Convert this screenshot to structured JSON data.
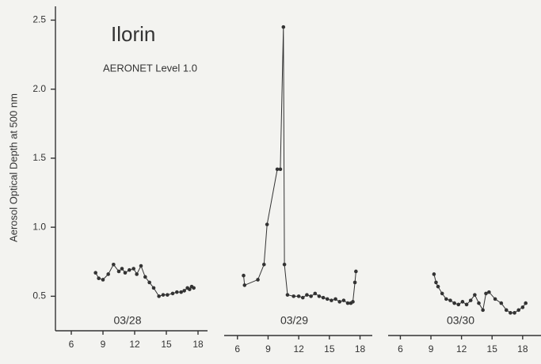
{
  "chart_data": {
    "type": "line",
    "title": "Ilorin",
    "subtitle": "AERONET Level 1.0",
    "y_label": "Aerosol Optical Depth at 500 nm",
    "color": "#333333",
    "ylim": [
      0.25,
      2.6
    ],
    "yticks": [
      0.5,
      {
        "value": 1,
        "label": "1.0"
      },
      1.5,
      {
        "value": 2,
        "label": "2.0"
      },
      2.5
    ],
    "panels": [
      {
        "label": "03/28",
        "xlim": [
          4.5,
          18.9
        ],
        "xticks": [
          6,
          9,
          12,
          15,
          18
        ],
        "x": [
          8.3,
          8.6,
          9.0,
          9.5,
          10.0,
          10.5,
          10.8,
          11.1,
          11.5,
          11.9,
          12.2,
          12.6,
          13.0,
          13.4,
          13.8,
          14.3,
          14.7,
          15.1,
          15.6,
          16.0,
          16.4,
          16.7,
          17.0,
          17.2,
          17.4,
          17.6
        ],
        "values": [
          0.67,
          0.63,
          0.62,
          0.66,
          0.73,
          0.68,
          0.7,
          0.67,
          0.69,
          0.7,
          0.66,
          0.72,
          0.64,
          0.6,
          0.56,
          0.5,
          0.51,
          0.51,
          0.52,
          0.53,
          0.53,
          0.54,
          0.56,
          0.55,
          0.57,
          0.56
        ]
      },
      {
        "label": "03/29",
        "xlim": [
          4.7,
          19.2
        ],
        "xticks": [
          6,
          9,
          12,
          15,
          18
        ],
        "x": [
          6.6,
          6.7,
          8.0,
          8.6,
          8.9,
          9.9,
          10.2,
          10.5,
          10.6,
          10.9,
          11.5,
          12.0,
          12.4,
          12.8,
          13.2,
          13.6,
          14.0,
          14.4,
          14.8,
          15.2,
          15.6,
          16.0,
          16.4,
          16.8,
          17.1,
          17.3,
          17.5,
          17.6
        ],
        "values": [
          0.65,
          0.58,
          0.62,
          0.73,
          1.02,
          1.42,
          1.42,
          2.45,
          0.73,
          0.51,
          0.5,
          0.5,
          0.49,
          0.51,
          0.5,
          0.52,
          0.5,
          0.49,
          0.48,
          0.47,
          0.48,
          0.46,
          0.47,
          0.45,
          0.45,
          0.46,
          0.6,
          0.68
        ]
      },
      {
        "label": "03/30",
        "xlim": [
          4.8,
          19.8
        ],
        "xticks": [
          6,
          9,
          12,
          15,
          18
        ],
        "x": [
          9.3,
          9.5,
          9.7,
          10.1,
          10.5,
          10.9,
          11.3,
          11.7,
          12.1,
          12.5,
          12.9,
          13.3,
          13.7,
          14.1,
          14.4,
          14.7,
          15.3,
          15.9,
          16.4,
          16.8,
          17.2,
          17.6,
          18.0,
          18.3
        ],
        "values": [
          0.66,
          0.6,
          0.57,
          0.52,
          0.48,
          0.47,
          0.45,
          0.44,
          0.46,
          0.44,
          0.47,
          0.51,
          0.45,
          0.4,
          0.52,
          0.53,
          0.48,
          0.45,
          0.4,
          0.38,
          0.38,
          0.4,
          0.42,
          0.45
        ]
      }
    ]
  }
}
